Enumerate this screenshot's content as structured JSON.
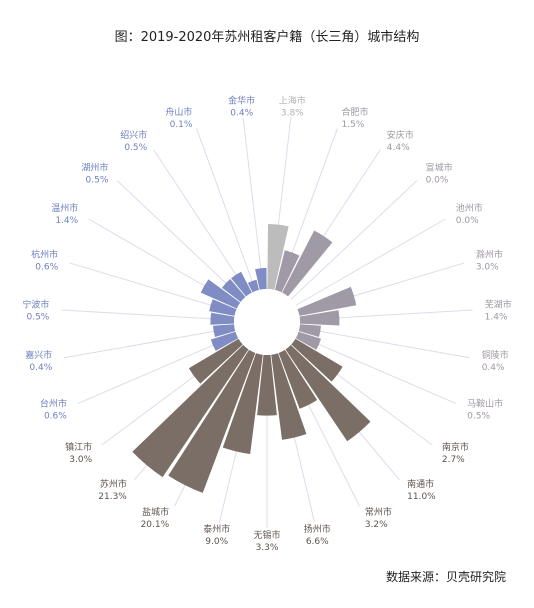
{
  "chart_data": {
    "type": "rose",
    "title": "图：2019-2020年苏州租客户籍（长三角）城市结构",
    "source": "数据来源：贝壳研究院",
    "unit": "%",
    "categories": [
      "上海市",
      "合肥市",
      "安庆市",
      "宣城市",
      "池州市",
      "滁州市",
      "芜湖市",
      "铜陵市",
      "马鞍山市",
      "南京市",
      "南通市",
      "常州市",
      "扬州市",
      "无锡市",
      "泰州市",
      "盐城市",
      "苏州市",
      "镇江市",
      "台州市",
      "嘉兴市",
      "宁波市",
      "杭州市",
      "温州市",
      "湖州市",
      "绍兴市",
      "舟山市",
      "金华市"
    ],
    "labels": [
      "3.8%",
      "1.5%",
      "4.4%",
      "0.0%",
      "0.0%",
      "3.0%",
      "1.4%",
      "0.4%",
      "0.5%",
      "2.7%",
      "11.0%",
      "3.2%",
      "6.6%",
      "3.3%",
      "9.0%",
      "20.1%",
      "21.3%",
      "3.0%",
      "0.6%",
      "0.4%",
      "0.5%",
      "0.6%",
      "1.4%",
      "0.5%",
      "0.5%",
      "0.1%",
      "0.4%"
    ],
    "values": [
      3.8,
      1.5,
      4.4,
      0.0,
      0.0,
      3.0,
      1.4,
      0.4,
      0.5,
      2.7,
      11.0,
      3.2,
      6.6,
      3.3,
      9.0,
      20.1,
      21.3,
      3.0,
      0.6,
      0.4,
      0.5,
      0.6,
      1.4,
      0.5,
      0.5,
      0.1,
      0.4
    ],
    "groups": [
      "shanghai",
      "anhui",
      "anhui",
      "anhui",
      "anhui",
      "anhui",
      "anhui",
      "anhui",
      "anhui",
      "jiangsu",
      "jiangsu",
      "jiangsu",
      "jiangsu",
      "jiangsu",
      "jiangsu",
      "jiangsu",
      "jiangsu",
      "jiangsu",
      "zhejiang",
      "zhejiang",
      "zhejiang",
      "zhejiang",
      "zhejiang",
      "zhejiang",
      "zhejiang",
      "zhejiang",
      "zhejiang"
    ],
    "colors": {
      "shanghai": "#bcbcbc",
      "anhui": "#a09aa6",
      "jiangsu": "#7a6e67",
      "zhejiang": "#7f8dc4"
    },
    "label_colors": {
      "shanghai": "#b3b3b3",
      "anhui": "#9e97a4",
      "jiangsu": "#5f534c",
      "zhejiang": "#6f7fc0"
    }
  }
}
